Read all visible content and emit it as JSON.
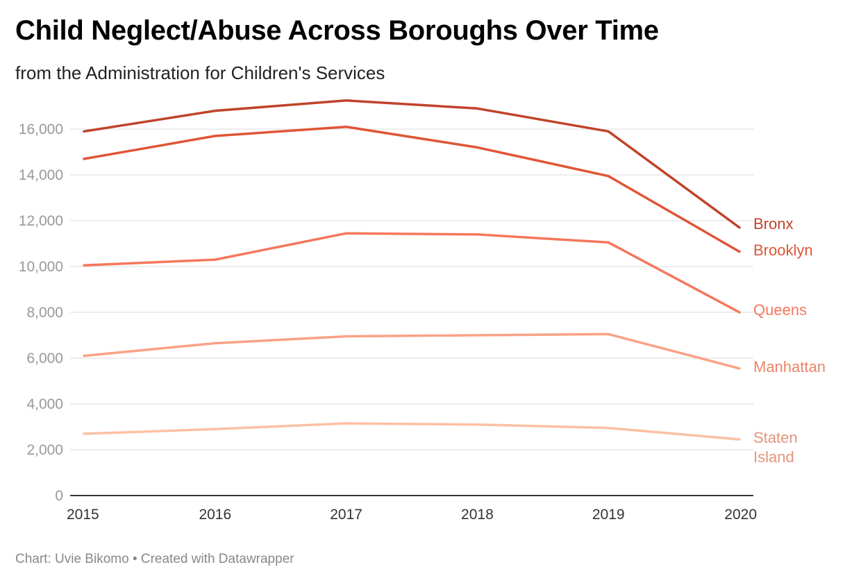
{
  "title": "Child Neglect/Abuse Across Boroughs Over Time",
  "subtitle": "from the Administration for Children's Services",
  "footer": "Chart: Uvie Bikomo • Created with Datawrapper",
  "chart_data": {
    "type": "line",
    "title": "Child Neglect/Abuse Across Boroughs Over Time",
    "subtitle": "from the Administration for Children's Services",
    "xlabel": "",
    "ylabel": "",
    "x": [
      2015,
      2016,
      2017,
      2018,
      2019,
      2020
    ],
    "ylim": [
      0,
      16000
    ],
    "yticks": [
      0,
      2000,
      4000,
      6000,
      8000,
      10000,
      12000,
      14000,
      16000
    ],
    "ytick_labels": [
      "0",
      "2,000",
      "4,000",
      "6,000",
      "8,000",
      "10,000",
      "12,000",
      "14,000",
      "16,000"
    ],
    "grid": true,
    "legend": "direct labels at line ends",
    "series": [
      {
        "name": "Bronx",
        "label_lines": [
          "Bronx"
        ],
        "color": "#c0432b",
        "values": [
          15900,
          16800,
          17250,
          16900,
          15900,
          11700
        ]
      },
      {
        "name": "Brooklyn",
        "label_lines": [
          "Brooklyn"
        ],
        "color": "#e05536",
        "values": [
          14700,
          15700,
          16100,
          15200,
          13950,
          10650
        ]
      },
      {
        "name": "Queens",
        "label_lines": [
          "Queens"
        ],
        "color": "#f4775d",
        "values": [
          10050,
          10300,
          11450,
          11400,
          11050,
          8000
        ]
      },
      {
        "name": "Manhattan",
        "label_lines": [
          "Manhattan"
        ],
        "color": "#f9a286",
        "label_color": "#e8866a",
        "values": [
          6100,
          6650,
          6950,
          7000,
          7050,
          5550
        ]
      },
      {
        "name": "Staten Island",
        "label_lines": [
          "Staten",
          "Island"
        ],
        "color": "#fcc0a3",
        "label_color": "#e4947a",
        "values": [
          2700,
          2900,
          3150,
          3100,
          2950,
          2450
        ]
      }
    ]
  }
}
